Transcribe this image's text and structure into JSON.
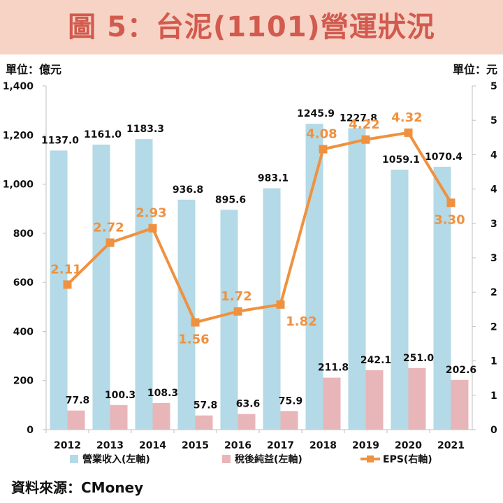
{
  "header": {
    "title": "圖 5：台泥(1101)營運狀況",
    "unit_left": "單位：億元",
    "unit_right": "單位：元"
  },
  "footer": {
    "source": "資料來源：CMoney"
  },
  "colors": {
    "revenue": "#b3dae6",
    "net_income": "#e8b6b8",
    "eps": "#f0913f",
    "title_bg": "#f6d3c5",
    "title_text": "#d25a4e"
  },
  "chart_data": {
    "type": "bar",
    "categories": [
      "2012",
      "2013",
      "2014",
      "2015",
      "2016",
      "2017",
      "2018",
      "2019",
      "2020",
      "2021"
    ],
    "series": [
      {
        "name": "營業收入(左軸)",
        "kind": "bar",
        "axis": "left",
        "values": [
          1137.0,
          1161.0,
          1183.3,
          936.8,
          895.6,
          983.1,
          1245.9,
          1227.8,
          1059.1,
          1070.4
        ],
        "labels": [
          "1137.0",
          "1161.0",
          "1183.3",
          "936.8",
          "895.6",
          "983.1",
          "1245.9",
          "1227.8",
          "1059.1",
          "1070.4"
        ]
      },
      {
        "name": "稅後純益(左軸)",
        "kind": "bar",
        "axis": "left",
        "values": [
          77.8,
          100.3,
          108.3,
          57.8,
          63.6,
          75.9,
          211.8,
          242.1,
          251.0,
          202.6
        ],
        "labels": [
          "77.8",
          "100.3",
          "108.3",
          "57.8",
          "63.6",
          "75.9",
          "211.8",
          "242.1",
          "251.0",
          "202.6"
        ]
      },
      {
        "name": "EPS(右軸)",
        "kind": "line",
        "axis": "right",
        "values": [
          2.11,
          2.72,
          2.93,
          1.56,
          1.72,
          1.82,
          4.08,
          4.22,
          4.32,
          3.3
        ],
        "labels": [
          "2.11",
          "2.72",
          "2.93",
          "1.56",
          "1.72",
          "1.82",
          "4.08",
          "4.22",
          "4.32",
          "3.30"
        ]
      }
    ],
    "y_left": {
      "ylim": [
        0,
        1400
      ],
      "ticks": [
        "0",
        "200",
        "400",
        "600",
        "800",
        "1,000",
        "1,200",
        "1,400"
      ]
    },
    "y_right": {
      "ylim": [
        0,
        5
      ],
      "ticks": [
        "0",
        "1",
        "1",
        "2",
        "2",
        "3",
        "3",
        "4",
        "4",
        "5",
        "5"
      ]
    },
    "legend_position": "bottom"
  }
}
